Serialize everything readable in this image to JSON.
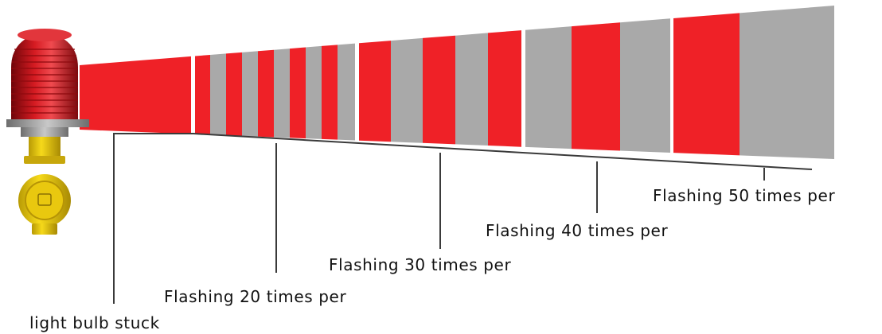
{
  "diagram": {
    "labels": {
      "stuck": "light bulb stuck",
      "f20": "Flashing 20 times per",
      "f30": "Flashing 30 times per",
      "f40": "Flashing 40 times per",
      "f50": "Flashing 50 times per"
    },
    "colors": {
      "red": "#ef2127",
      "gray": "#a9a9a9",
      "line": "#3a3a3a",
      "lamp_red": "#c0141c",
      "lamp_yellow": "#f2d10f",
      "base_metal": "#9a9a9a"
    },
    "icons": {
      "lamp": "aviation-obstruction-light-icon"
    }
  }
}
